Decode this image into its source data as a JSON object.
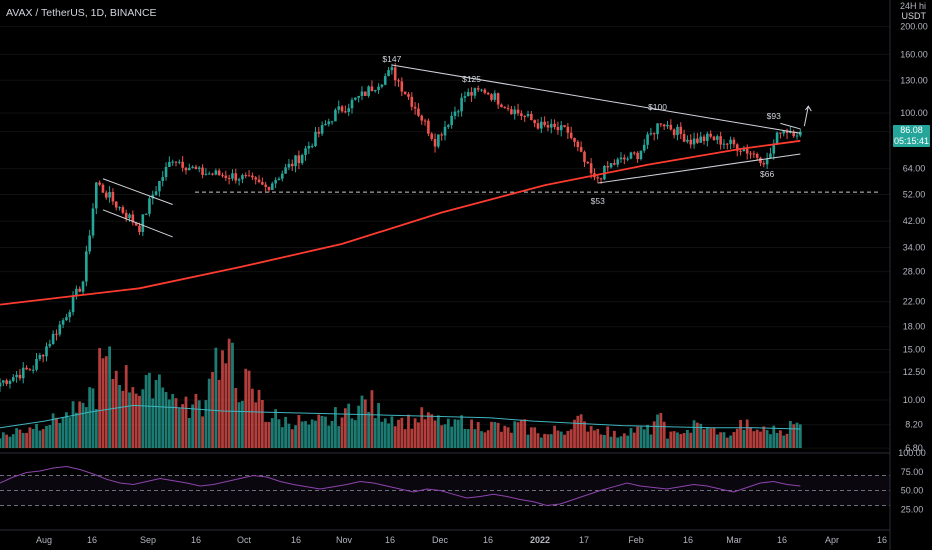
{
  "header": {
    "symbol_line": "AVAX / TetherUS, 1D, BINANCE",
    "unit_top": "24H hi",
    "unit_currency": "USDT"
  },
  "price_tag": {
    "value": "86.08",
    "countdown": "05:15:41"
  },
  "colors": {
    "up": "#26a69a",
    "down": "#ef5350",
    "ma": "#ff3b30",
    "vol_ma": "#3fb5c0",
    "rsi": "#8e44ad",
    "bg": "#000000",
    "trendline": "#d1d4dc"
  },
  "chart_data": [
    {
      "type": "candlestick",
      "title": "AVAX / TetherUS, 1D, BINANCE",
      "y_scale": "log",
      "y_ticks": [
        "200.00",
        "160.00",
        "130.00",
        "100.00",
        "86.08",
        "64.00",
        "52.00",
        "42.00",
        "34.00",
        "28.00",
        "22.00",
        "18.00",
        "15.00",
        "12.50",
        "10.00",
        "8.20",
        "6.80"
      ],
      "x_ticks": [
        "Aug",
        "16",
        "Sep",
        "16",
        "Oct",
        "16",
        "Nov",
        "16",
        "Dec",
        "16",
        "2022",
        "17",
        "Feb",
        "16",
        "Mar",
        "16",
        "Apr",
        "16"
      ],
      "x_range": [
        "2021-07-26",
        "2022-04-20"
      ],
      "ohlc_anchors": [
        {
          "date": "2021-07-26",
          "close": 11.5
        },
        {
          "date": "2021-08-05",
          "close": 13.0
        },
        {
          "date": "2021-08-14",
          "close": 19.0
        },
        {
          "date": "2021-08-20",
          "close": 26.0
        },
        {
          "date": "2021-08-24",
          "close": 57.0
        },
        {
          "date": "2021-08-30",
          "close": 48.0
        },
        {
          "date": "2021-09-06",
          "close": 40.0
        },
        {
          "date": "2021-09-10",
          "close": 52.0
        },
        {
          "date": "2021-09-16",
          "close": 70.0
        },
        {
          "date": "2021-09-24",
          "close": 62.0
        },
        {
          "date": "2021-10-06",
          "close": 60.0
        },
        {
          "date": "2021-10-14",
          "close": 55.0
        },
        {
          "date": "2021-10-24",
          "close": 70.0
        },
        {
          "date": "2021-11-04",
          "close": 100.0
        },
        {
          "date": "2021-11-12",
          "close": 115.0
        },
        {
          "date": "2021-11-21",
          "close": 140.0
        },
        {
          "date": "2021-11-28",
          "close": 105.0
        },
        {
          "date": "2021-12-04",
          "close": 80.0
        },
        {
          "date": "2021-12-13",
          "close": 115.0
        },
        {
          "date": "2021-12-19",
          "close": 120.0
        },
        {
          "date": "2021-12-26",
          "close": 105.0
        },
        {
          "date": "2022-01-05",
          "close": 90.0
        },
        {
          "date": "2022-01-13",
          "close": 86.0
        },
        {
          "date": "2022-01-21",
          "close": 58.0
        },
        {
          "date": "2022-01-26",
          "close": 66.0
        },
        {
          "date": "2022-02-03",
          "close": 72.0
        },
        {
          "date": "2022-02-10",
          "close": 94.0
        },
        {
          "date": "2022-02-19",
          "close": 80.0
        },
        {
          "date": "2022-02-25",
          "close": 82.0
        },
        {
          "date": "2022-03-06",
          "close": 76.0
        },
        {
          "date": "2022-03-14",
          "close": 68.0
        },
        {
          "date": "2022-03-18",
          "close": 88.0
        },
        {
          "date": "2022-03-24",
          "close": 86.08
        }
      ],
      "moving_average": [
        {
          "date": "2021-07-26",
          "value": 21.5
        },
        {
          "date": "2021-09-06",
          "value": 24.5
        },
        {
          "date": "2021-10-06",
          "value": 29.0
        },
        {
          "date": "2021-11-06",
          "value": 35.0
        },
        {
          "date": "2021-12-06",
          "value": 45.0
        },
        {
          "date": "2022-01-06",
          "value": 56.0
        },
        {
          "date": "2022-02-06",
          "value": 66.0
        },
        {
          "date": "2022-03-06",
          "value": 75.0
        },
        {
          "date": "2022-03-24",
          "value": 80.0
        }
      ],
      "support_level": 53,
      "annotations": [
        {
          "text": "$147",
          "date": "2021-11-21",
          "value": 147
        },
        {
          "text": "$125",
          "date": "2021-12-15",
          "value": 125
        },
        {
          "text": "$100",
          "date": "2022-02-09",
          "value": 100
        },
        {
          "text": "$93",
          "date": "2022-03-16",
          "value": 93
        },
        {
          "text": "$53",
          "date": "2022-01-22",
          "value": 53
        },
        {
          "text": "$66",
          "date": "2022-03-14",
          "value": 66
        }
      ],
      "trendlines": [
        {
          "from": {
            "date": "2021-11-21",
            "value": 147
          },
          "to": {
            "date": "2022-03-24",
            "value": 85
          }
        },
        {
          "from": {
            "date": "2022-01-22",
            "value": 57
          },
          "to": {
            "date": "2022-03-24",
            "value": 72
          }
        },
        {
          "from": {
            "date": "2021-08-26",
            "value": 59
          },
          "to": {
            "date": "2021-09-16",
            "value": 48
          }
        },
        {
          "from": {
            "date": "2021-08-26",
            "value": 46
          },
          "to": {
            "date": "2021-09-16",
            "value": 37
          }
        },
        {
          "from": {
            "date": "2022-03-18",
            "value": 92
          },
          "to": {
            "date": "2022-03-24",
            "value": 88
          }
        }
      ],
      "volume_relative": [
        0.15,
        0.2,
        0.25,
        0.3,
        0.35,
        0.4,
        0.6,
        0.9,
        0.85,
        0.75,
        0.65,
        0.8,
        0.55,
        0.45,
        0.5,
        1.0,
        0.95,
        0.7,
        0.55,
        0.35,
        0.3,
        0.3,
        0.25,
        0.3,
        0.35,
        0.45,
        0.5,
        0.4,
        0.35,
        0.3,
        0.35,
        0.3,
        0.25,
        0.3,
        0.25,
        0.25,
        0.2,
        0.25,
        0.2,
        0.15,
        0.2,
        0.3,
        0.25,
        0.2,
        0.15,
        0.2,
        0.2,
        0.3,
        0.15,
        0.2,
        0.25,
        0.2,
        0.15,
        0.25,
        0.2,
        0.2,
        0.2,
        0.25
      ],
      "volume_ma_relative": [
        0.18,
        0.24,
        0.32,
        0.38,
        0.36,
        0.33,
        0.32,
        0.31,
        0.3,
        0.29,
        0.28,
        0.27,
        0.24,
        0.22,
        0.2,
        0.19,
        0.18,
        0.18,
        0.17
      ],
      "rsi": {
        "y_ticks": [
          "100.00",
          "75.00",
          "50.00",
          "25.00"
        ],
        "levels": [
          70,
          50,
          30
        ],
        "values": [
          60,
          68,
          74,
          76,
          80,
          82,
          78,
          72,
          65,
          60,
          58,
          62,
          66,
          63,
          60,
          56,
          58,
          62,
          66,
          70,
          68,
          62,
          58,
          55,
          52,
          55,
          58,
          62,
          60,
          56,
          52,
          48,
          52,
          50,
          45,
          40,
          42,
          45,
          42,
          38,
          35,
          30,
          32,
          38,
          44,
          50,
          55,
          60,
          56,
          54,
          52,
          55,
          58,
          56,
          52,
          48,
          54,
          60,
          62,
          58,
          56
        ]
      }
    }
  ]
}
